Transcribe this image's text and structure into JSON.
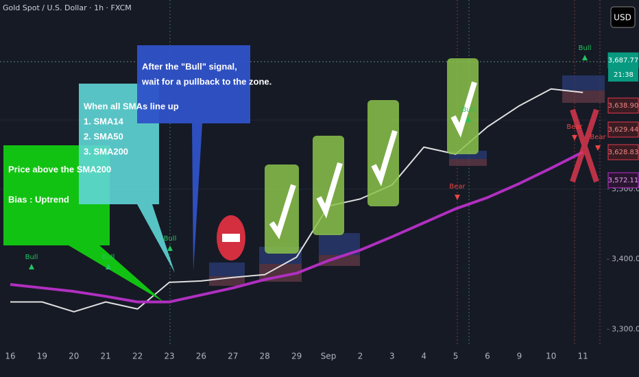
{
  "chart_data": {
    "type": "line",
    "title": "Gold Spot / U.S. Dollar · 1h · FXCM",
    "currency": "USD",
    "categories": [
      "16",
      "19",
      "20",
      "21",
      "22",
      "23",
      "26",
      "27",
      "28",
      "29",
      "Sep",
      "2",
      "3",
      "4",
      "5",
      "6",
      "9",
      "10",
      "11"
    ],
    "series": [
      {
        "name": "Price",
        "color": "#e0e0e0",
        "values": [
          3339,
          3339,
          3325,
          3339,
          3329,
          3367,
          3369,
          3374,
          3378,
          3403,
          3476,
          3486,
          3506,
          3560,
          3550,
          3589,
          3619,
          3643,
          3638
        ]
      },
      {
        "name": "SMA200",
        "color": "#b02fc0",
        "values": [
          3364,
          3359,
          3354,
          3347,
          3339,
          3339,
          3349,
          3359,
          3371,
          3380,
          3398,
          3413,
          3432,
          3452,
          3472,
          3488,
          3508,
          3530,
          3553
        ]
      }
    ],
    "ylim": [
      3271,
      3770
    ],
    "yticks": [
      {
        "value": 3300,
        "label": "3,300.00"
      },
      {
        "value": 3400,
        "label": "3,400.00"
      },
      {
        "value": 3500,
        "label": "3,500.00"
      }
    ],
    "price_tags": [
      {
        "value": 3687.77,
        "label": "3,687.77"
      },
      {
        "value": 3638.9,
        "label": "3,638.90"
      },
      {
        "value": 3629.44,
        "label": "3,629.44"
      },
      {
        "value": 3628.83,
        "label": "3,628.83"
      },
      {
        "value": 3572.11,
        "label": "3,572.11"
      }
    ],
    "countdown": "21:38",
    "signals": [
      "Bull",
      "Bull",
      "Bull",
      "Bull",
      "Bull",
      "Bear",
      "Bear",
      "Bear"
    ],
    "annotations": [
      [
        "Price above the SMA200",
        "Bias : Uptrend"
      ],
      [
        "When all SMAs line up",
        "1. SMA14",
        "2. SMA50",
        "3. SMA200"
      ],
      [
        "After the \"Bull\" signal,",
        "wait for a pullback to the zone."
      ]
    ]
  }
}
